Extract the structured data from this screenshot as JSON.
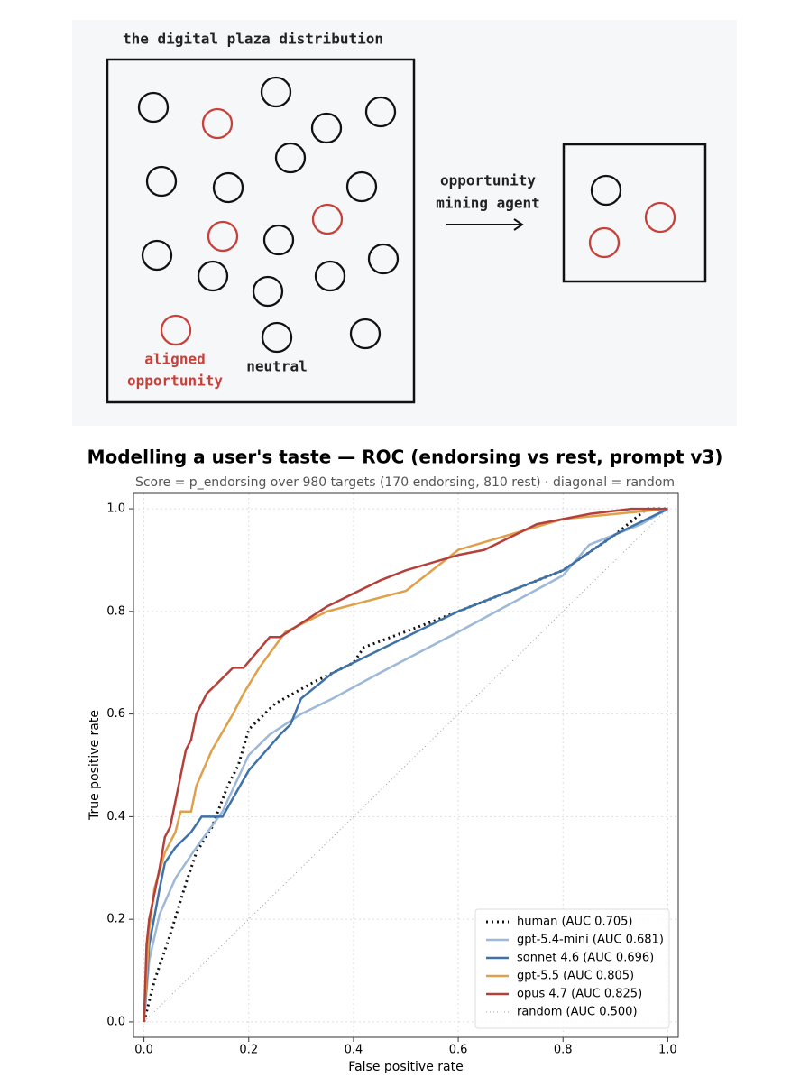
{
  "diagram": {
    "title": "the digital plaza distribution",
    "arrow_label": [
      "opportunity",
      "mining agent"
    ],
    "aligned_label": [
      "aligned",
      "opportunity"
    ],
    "neutral_label": "neutral"
  },
  "chart_data": {
    "type": "line",
    "title": "Modelling a user's taste — ROC (endorsing vs rest, prompt v3)",
    "subtitle": "Score = p_endorsing over 980 targets (170 endorsing, 810 rest) · diagonal = random",
    "x_label": "False positive rate",
    "y_label": "True positive rate",
    "xlim": [
      -0.02,
      1.02
    ],
    "ylim": [
      -0.03,
      1.03
    ],
    "xticks": [
      {
        "value": 0,
        "label": "0.0"
      },
      0.2,
      0.4,
      0.6,
      0.8,
      {
        "value": 1,
        "label": "1.0"
      }
    ],
    "yticks": [
      {
        "value": 0,
        "label": "0.0"
      },
      0.2,
      0.4,
      0.6,
      0.8,
      {
        "value": 1,
        "label": "1.0"
      }
    ],
    "grid": true,
    "legend": "lower right",
    "series": [
      {
        "name": "human (AUC 0.705)",
        "color": "#111111",
        "linestyle": "dotted",
        "linewidth": 3,
        "x": [
          0,
          0.02,
          0.05,
          0.08,
          0.1,
          0.13,
          0.16,
          0.18,
          0.2,
          0.25,
          0.32,
          0.4,
          0.42,
          0.55,
          0.7,
          0.8,
          0.9,
          0.96,
          1
        ],
        "values": [
          0,
          0.08,
          0.17,
          0.27,
          0.33,
          0.38,
          0.46,
          0.5,
          0.57,
          0.62,
          0.66,
          0.7,
          0.73,
          0.78,
          0.84,
          0.88,
          0.95,
          1,
          1
        ]
      },
      {
        "name": "gpt-5.4-mini (AUC 0.681)",
        "color": "#9db8d8",
        "linestyle": "solid",
        "linewidth": 2.5,
        "x": [
          0,
          0.01,
          0.03,
          0.06,
          0.1,
          0.15,
          0.2,
          0.24,
          0.3,
          0.36,
          0.45,
          0.6,
          0.8,
          0.85,
          0.95,
          1
        ],
        "values": [
          0,
          0.12,
          0.21,
          0.28,
          0.34,
          0.41,
          0.52,
          0.56,
          0.6,
          0.63,
          0.68,
          0.76,
          0.87,
          0.93,
          0.97,
          1
        ]
      },
      {
        "name": "sonnet 4.6 (AUC 0.696)",
        "color": "#3f72a8",
        "linestyle": "solid",
        "linewidth": 2.5,
        "x": [
          0,
          0.01,
          0.03,
          0.04,
          0.06,
          0.09,
          0.11,
          0.15,
          0.2,
          0.26,
          0.28,
          0.3,
          0.36,
          0.42,
          0.6,
          0.8,
          0.9,
          1
        ],
        "values": [
          0,
          0.15,
          0.26,
          0.31,
          0.34,
          0.37,
          0.4,
          0.4,
          0.49,
          0.56,
          0.58,
          0.63,
          0.68,
          0.71,
          0.8,
          0.88,
          0.95,
          1
        ]
      },
      {
        "name": "gpt-5.5 (AUC 0.805)",
        "color": "#e0a04a",
        "linestyle": "solid",
        "linewidth": 2.5,
        "x": [
          0,
          0.01,
          0.02,
          0.04,
          0.06,
          0.07,
          0.09,
          0.1,
          0.13,
          0.17,
          0.19,
          0.22,
          0.27,
          0.35,
          0.5,
          0.6,
          0.7,
          0.8,
          0.9,
          1
        ],
        "values": [
          0,
          0.18,
          0.26,
          0.33,
          0.37,
          0.41,
          0.41,
          0.46,
          0.53,
          0.6,
          0.64,
          0.69,
          0.76,
          0.8,
          0.84,
          0.92,
          0.95,
          0.98,
          0.99,
          1
        ]
      },
      {
        "name": "opus 4.7 (AUC 0.825)",
        "color": "#b5403a",
        "linestyle": "solid",
        "linewidth": 2.5,
        "x": [
          0,
          0.005,
          0.01,
          0.02,
          0.03,
          0.04,
          0.05,
          0.06,
          0.07,
          0.08,
          0.09,
          0.1,
          0.12,
          0.15,
          0.17,
          0.19,
          0.24,
          0.26,
          0.35,
          0.45,
          0.5,
          0.6,
          0.65,
          0.75,
          0.85,
          0.93,
          1
        ],
        "values": [
          0,
          0.15,
          0.2,
          0.25,
          0.3,
          0.36,
          0.38,
          0.43,
          0.48,
          0.53,
          0.55,
          0.6,
          0.64,
          0.67,
          0.69,
          0.69,
          0.75,
          0.75,
          0.81,
          0.86,
          0.88,
          0.91,
          0.92,
          0.97,
          0.99,
          1,
          1
        ]
      },
      {
        "name": "random (AUC 0.500)",
        "color": "#999999",
        "linestyle": "dotted",
        "linewidth": 1,
        "x": [
          0,
          1
        ],
        "values": [
          0,
          1
        ]
      }
    ]
  }
}
